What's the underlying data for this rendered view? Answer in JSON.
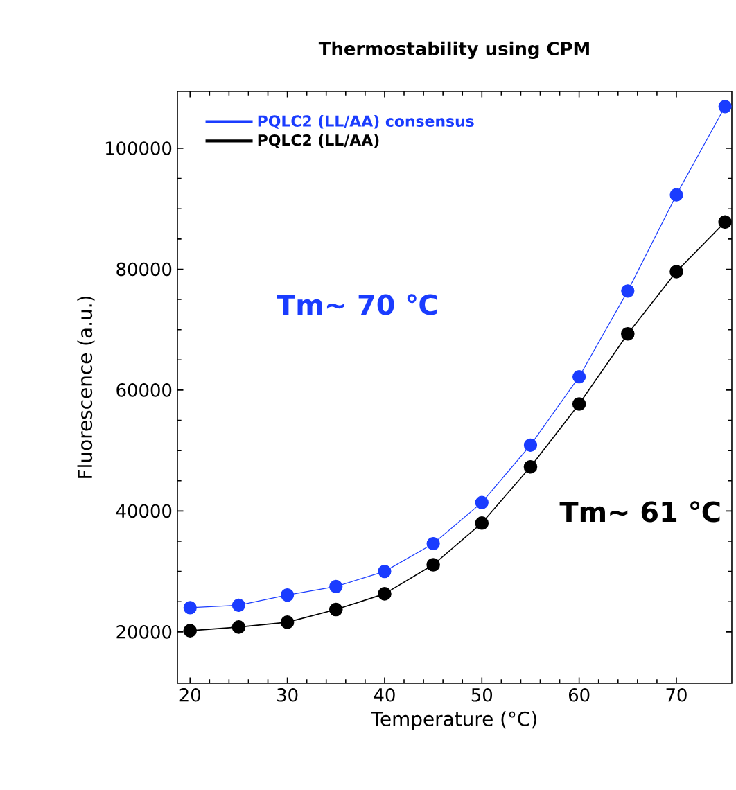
{
  "chart_data": {
    "type": "line",
    "title": "Thermostability using CPM",
    "xlabel": "Temperature (°C)",
    "ylabel": "Fluorescence (a.u.)",
    "x": [
      20,
      25,
      30,
      35,
      40,
      45,
      50,
      55,
      60,
      65,
      70,
      75
    ],
    "series": [
      {
        "name": "PQLC2 (LL/AA) consensus",
        "color": "#1a3cff",
        "values": [
          24000,
          24400,
          26100,
          27500,
          30000,
          34600,
          41400,
          50900,
          62200,
          76400,
          92300,
          106900
        ]
      },
      {
        "name": "PQLC2 (LL/AA)",
        "color": "#000000",
        "values": [
          20200,
          20800,
          21600,
          23700,
          26300,
          31100,
          38000,
          47300,
          57700,
          69300,
          79600,
          87800
        ]
      }
    ],
    "annotations": [
      "Tm~ 70 ℃",
      "Tm~ 61 ℃"
    ],
    "xlim": [
      18.7,
      75.7
    ],
    "ylim": [
      11500,
      109400
    ],
    "xticks": [
      20,
      30,
      40,
      50,
      60,
      70
    ],
    "yticks": [
      20000,
      40000,
      60000,
      80000,
      100000
    ],
    "grid": false,
    "legend": "top left",
    "marker": "circle",
    "line_style": "solid"
  }
}
